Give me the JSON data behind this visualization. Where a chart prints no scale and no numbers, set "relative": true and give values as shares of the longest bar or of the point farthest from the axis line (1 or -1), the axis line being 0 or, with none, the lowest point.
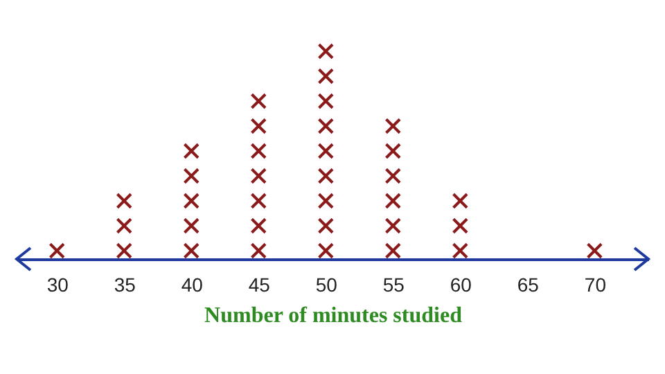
{
  "chart_data": {
    "type": "scatter",
    "xlabel": "Number of minutes studied",
    "relative": true,
    "x": [
      30,
      35,
      35,
      35,
      40,
      40,
      40,
      40,
      40,
      45,
      45,
      45,
      45,
      45,
      45,
      45,
      50,
      50,
      50,
      50,
      50,
      50,
      50,
      50,
      50,
      55,
      55,
      55,
      55,
      55,
      55,
      60,
      60,
      60,
      70
    ],
    "series": [
      {
        "color": "#8b1a1a",
        "values": [
          0.04,
          0.04,
          0.16,
          0.28,
          0.04,
          0.16,
          0.28,
          0.4,
          0.52,
          0.04,
          0.16,
          0.28,
          0.4,
          0.52,
          0.64,
          0.76,
          0.04,
          0.16,
          0.28,
          0.4,
          0.52,
          0.64,
          0.76,
          0.88,
          1,
          0.04,
          0.16,
          0.28,
          0.4,
          0.52,
          0.64,
          0.04,
          0.16,
          0.28,
          0.04
        ]
      }
    ],
    "xlim": [
      27,
      74
    ],
    "xticks": [
      30,
      35,
      40,
      45,
      50,
      55,
      60,
      65,
      70
    ],
    "tick_labels": "x",
    "marker": "cross",
    "grid": false
  }
}
